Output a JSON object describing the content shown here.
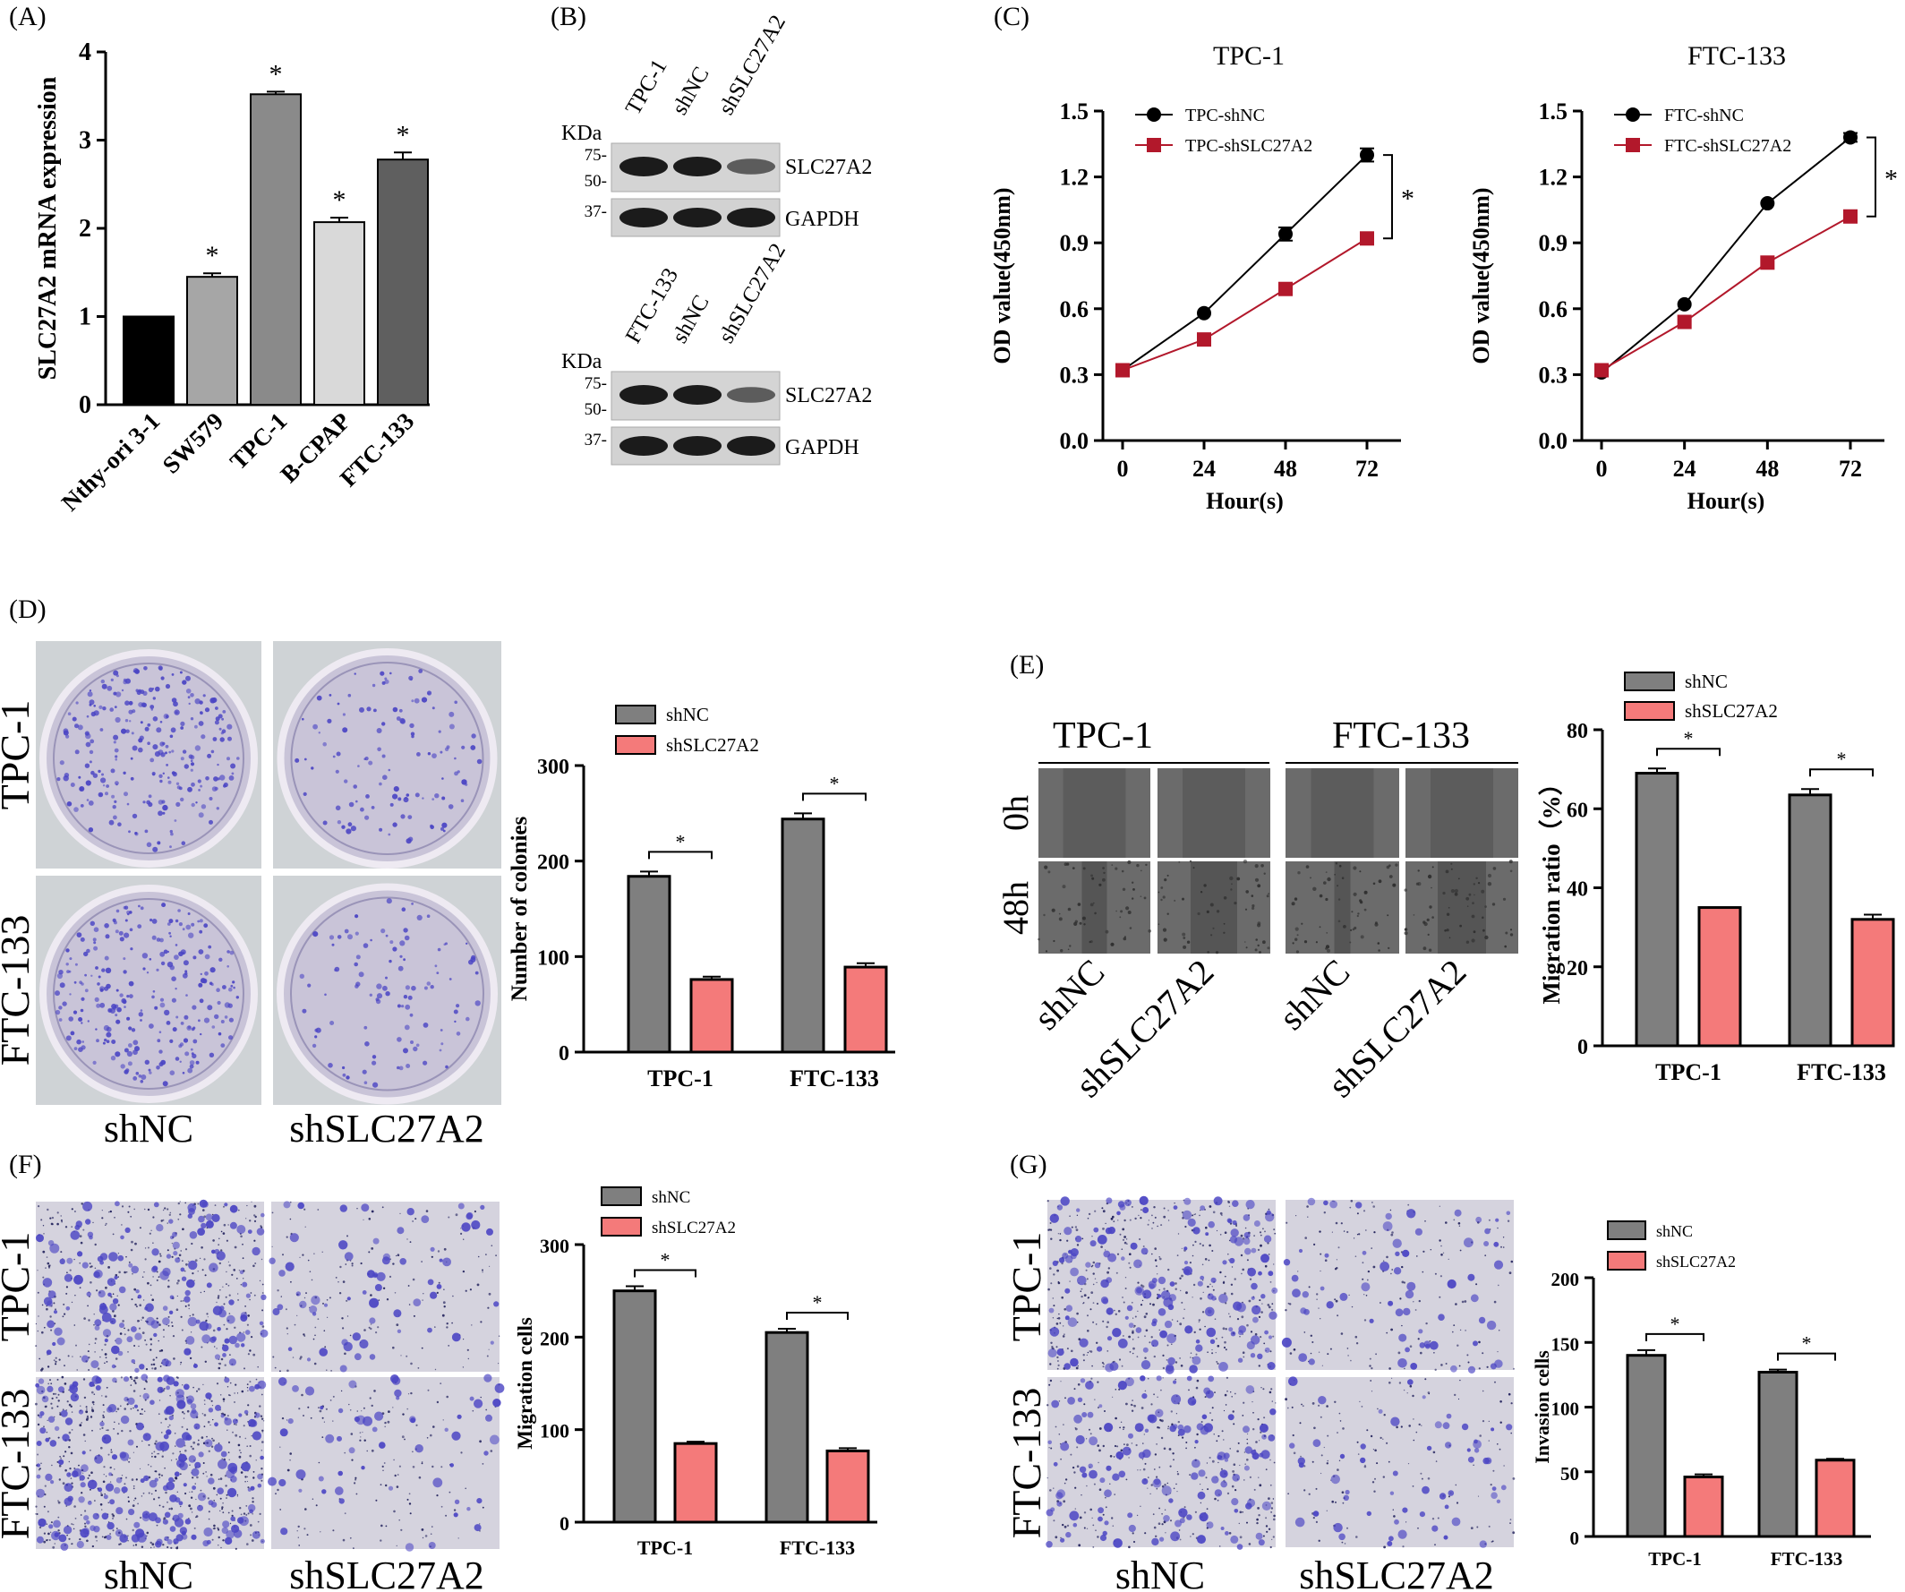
{
  "colors": {
    "black_bar": "#000000",
    "gray_bar": "#8c8c8c",
    "dark_gray": "#606060",
    "light_gray": "#d9d9d9",
    "mid_dark": "#5a5a5a",
    "shNC_bar": "#7f7f7f",
    "shSLC_bar": "#f47a7a",
    "line_red": "#b2182b",
    "stain": "#4b45c4"
  },
  "panels": {
    "A": {
      "label": "(A)",
      "chart_data": {
        "type": "bar",
        "categories": [
          "Nthy-ori 3-1",
          "SW579",
          "TPC-1",
          "B-CPAP",
          "FTC-133"
        ],
        "values": [
          1.0,
          1.45,
          3.52,
          2.07,
          2.78
        ],
        "errors": [
          0,
          0.04,
          0.03,
          0.05,
          0.08
        ],
        "significance": [
          "",
          "*",
          "*",
          "*",
          "*"
        ],
        "ylabel": "SLC27A2 mRNA expression",
        "ylim": [
          0,
          4
        ],
        "yticks": [
          0,
          1,
          2,
          3,
          4
        ],
        "bar_colors": [
          "#000000",
          "#a6a6a6",
          "#8a8a8a",
          "#d9d9d9",
          "#5f5f5f"
        ]
      }
    },
    "B": {
      "label": "(B)",
      "blots": [
        {
          "lanes": [
            "TPC-1",
            "shNC",
            "shSLC27A2"
          ],
          "kda_label": "KDa",
          "markers": [
            "75-",
            "50-",
            "37-"
          ],
          "proteins": [
            "SLC27A2",
            "GAPDH"
          ],
          "band_intensity": [
            [
              1.0,
              1.0,
              0.45
            ],
            [
              1.0,
              1.0,
              1.0
            ]
          ]
        },
        {
          "lanes": [
            "FTC-133",
            "shNC",
            "shSLC27A2"
          ],
          "kda_label": "KDa",
          "markers": [
            "75-",
            "50-",
            "37-"
          ],
          "proteins": [
            "SLC27A2",
            "GAPDH"
          ],
          "band_intensity": [
            [
              1.0,
              1.0,
              0.45
            ],
            [
              1.0,
              1.0,
              1.0
            ]
          ]
        }
      ]
    },
    "C": {
      "label": "(C)",
      "chart_data": [
        {
          "type": "line",
          "title": "TPC-1",
          "x": [
            0,
            24,
            48,
            72
          ],
          "series": [
            {
              "name": "TPC-shNC",
              "values": [
                0.32,
                0.58,
                0.94,
                1.3
              ],
              "errors": [
                0.01,
                0.01,
                0.03,
                0.03
              ]
            },
            {
              "name": "TPC-shSLC27A2",
              "values": [
                0.32,
                0.46,
                0.69,
                0.92
              ],
              "errors": [
                0.01,
                0.01,
                0.01,
                0.01
              ]
            }
          ],
          "xlabel": "Hour(s)",
          "ylabel": "OD value(450nm)",
          "ylim": [
            0.0,
            1.5
          ],
          "yticks": [
            "0.0",
            "0.3",
            "0.6",
            "0.9",
            "1.2",
            "1.5"
          ],
          "significance": "*"
        },
        {
          "type": "line",
          "title": "FTC-133",
          "x": [
            0,
            24,
            48,
            72
          ],
          "series": [
            {
              "name": "FTC-shNC",
              "values": [
                0.31,
                0.62,
                1.08,
                1.38
              ],
              "errors": [
                0.01,
                0.01,
                0.01,
                0.02
              ]
            },
            {
              "name": "FTC-shSLC27A2",
              "values": [
                0.32,
                0.54,
                0.81,
                1.02
              ],
              "errors": [
                0.01,
                0.01,
                0.01,
                0.01
              ]
            }
          ],
          "xlabel": "Hour(s)",
          "ylabel": "OD value(450nm)",
          "ylim": [
            0.0,
            1.5
          ],
          "yticks": [
            "0.0",
            "0.3",
            "0.6",
            "0.9",
            "1.2",
            "1.5"
          ],
          "significance": "*"
        }
      ]
    },
    "D": {
      "label": "(D)",
      "row_labels": [
        "TPC-1",
        "FTC-133"
      ],
      "col_labels": [
        "shNC",
        "shSLC27A2"
      ],
      "colony_density": [
        [
          1.0,
          0.45
        ],
        [
          1.0,
          0.4
        ]
      ],
      "chart_data": {
        "type": "bar",
        "categories": [
          "TPC-1",
          "FTC-133"
        ],
        "series": [
          {
            "name": "shNC",
            "values": [
              184,
              244
            ],
            "errors": [
              5,
              6
            ]
          },
          {
            "name": "shSLC27A2",
            "values": [
              76,
              89
            ],
            "errors": [
              3,
              4
            ]
          }
        ],
        "ylabel": "Number of colonies",
        "ylim": [
          0,
          300
        ],
        "yticks": [
          0,
          100,
          200,
          300
        ],
        "significance": "*"
      }
    },
    "E": {
      "label": "(E)",
      "group_labels": [
        "TPC-1",
        "FTC-133"
      ],
      "row_labels": [
        "0h",
        "48h"
      ],
      "col_labels": [
        "shNC",
        "shSLC27A2",
        "shNC",
        "shSLC27A2"
      ],
      "chart_data": {
        "type": "bar",
        "categories": [
          "TPC-1",
          "FTC-133"
        ],
        "series": [
          {
            "name": "shNC",
            "values": [
              69,
              63.5
            ],
            "errors": [
              1.2,
              1.5
            ]
          },
          {
            "name": "shSLC27A2",
            "values": [
              35,
              32
            ],
            "errors": [
              0,
              1.2
            ]
          }
        ],
        "ylabel": "Migration ratio（%）",
        "ylim": [
          0,
          80
        ],
        "yticks": [
          0,
          20,
          40,
          60,
          80
        ],
        "significance": "*"
      }
    },
    "F": {
      "label": "(F)",
      "row_labels": [
        "TPC-1",
        "FTC-133"
      ],
      "col_labels": [
        "shNC",
        "shSLC27A2"
      ],
      "cell_density": [
        [
          1.0,
          0.4
        ],
        [
          1.4,
          0.35
        ]
      ],
      "chart_data": {
        "type": "bar",
        "categories": [
          "TPC-1",
          "FTC-133"
        ],
        "series": [
          {
            "name": "shNC",
            "values": [
              250,
              205
            ],
            "errors": [
              5,
              4
            ]
          },
          {
            "name": "shSLC27A2",
            "values": [
              85,
              77
            ],
            "errors": [
              2,
              3
            ]
          }
        ],
        "ylabel": "Migration  cells",
        "ylim": [
          0,
          300
        ],
        "yticks": [
          0,
          100,
          200,
          300
        ],
        "significance": "*"
      }
    },
    "G": {
      "label": "(G)",
      "row_labels": [
        "TPC-1",
        "FTC-133"
      ],
      "col_labels": [
        "shNC",
        "shSLC27A2"
      ],
      "cell_density": [
        [
          1.0,
          0.4
        ],
        [
          0.8,
          0.35
        ]
      ],
      "chart_data": {
        "type": "bar",
        "categories": [
          "TPC-1",
          "FTC-133"
        ],
        "series": [
          {
            "name": "shNC",
            "values": [
              140,
              127
            ],
            "errors": [
              4,
              2
            ]
          },
          {
            "name": "shSLC27A2",
            "values": [
              46,
              59
            ],
            "errors": [
              2,
              1
            ]
          }
        ],
        "ylabel": "Invasion cells",
        "ylim": [
          0,
          200
        ],
        "yticks": [
          0,
          50,
          100,
          150,
          200
        ],
        "significance": "*"
      }
    }
  }
}
